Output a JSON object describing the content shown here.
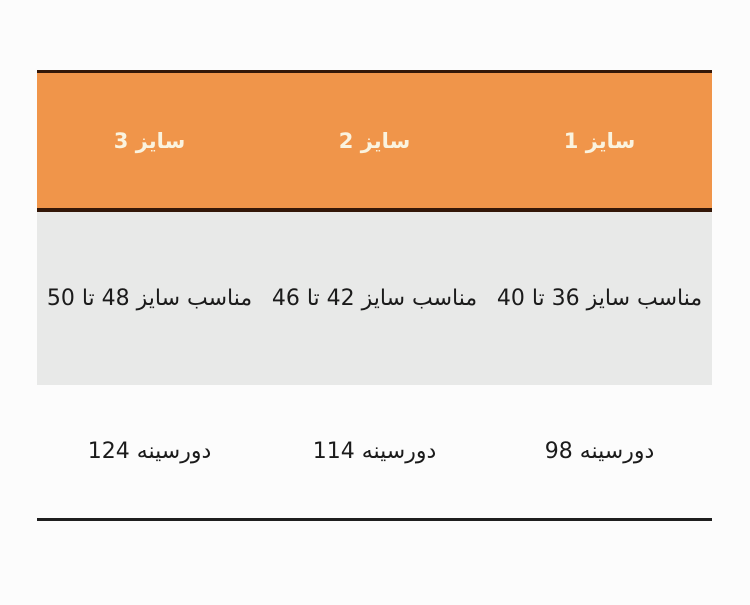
{
  "page": {
    "background_color": "#fcfcfc",
    "language": "fa",
    "direction": "rtl"
  },
  "colors": {
    "header_bg": "#f0954a",
    "header_text": "#faf3df",
    "header_border": "#331708",
    "fit_row_bg": "#e8e9e8",
    "bust_row_bg": "#fcfcfc",
    "body_text": "#1b1b1b",
    "bottom_rule": "#1f1f1f"
  },
  "table": {
    "columns": [
      {
        "header": "سایز 1",
        "fit": "مناسب سایز 36 تا 40",
        "bust": "دورسینه 98"
      },
      {
        "header": "سایز 2",
        "fit": "مناسب سایز 42 تا 46",
        "bust": "دورسینه 114"
      },
      {
        "header": "سایز 3",
        "fit": "مناسب سایز 48 تا 50",
        "bust": "دورسینه 124"
      }
    ]
  },
  "chart_data": {
    "type": "table",
    "direction": "rtl",
    "columns": [
      "سایز 1",
      "سایز 2",
      "سایز 3"
    ],
    "rows": [
      {
        "name": "suitable_size_range",
        "values": [
          "مناسب سایز 36 تا 40",
          "مناسب سایز 42 تا 46",
          "مناسب سایز 48 تا 50"
        ]
      },
      {
        "name": "bust_circumference",
        "values": [
          "دورسینه 98",
          "دورسینه 114",
          "دورسینه 124"
        ]
      }
    ],
    "bust_values_numeric": [
      98,
      114,
      124
    ],
    "size_ranges_numeric": [
      [
        36,
        40
      ],
      [
        42,
        46
      ],
      [
        48,
        50
      ]
    ],
    "layout": "column 'سایز 1' is the rightmost column; table has orange header band, gray range row, white bust row, black bottom rule"
  }
}
